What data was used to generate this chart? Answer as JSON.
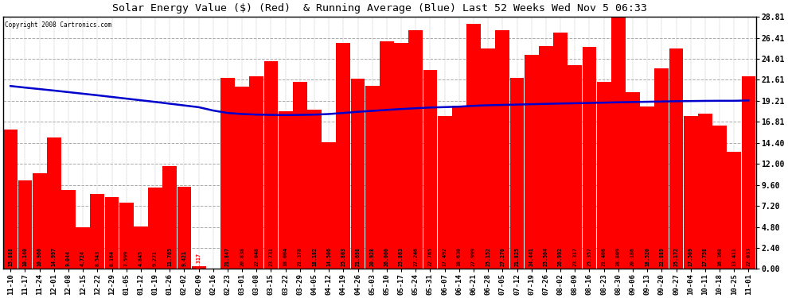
{
  "title": "Solar Energy Value ($) (Red)  & Running Average (Blue) Last 52 Weeks Wed Nov 5 06:33",
  "copyright": "Copyright 2008 Cartronics.com",
  "bar_color": "#FF0000",
  "line_color": "#0000CC",
  "bg_color": "#FFFFFF",
  "plot_bg_color": "#FFFFFF",
  "grid_color": "#AAAAAA",
  "yticks": [
    0.0,
    2.4,
    4.8,
    7.2,
    9.6,
    12.0,
    14.4,
    16.81,
    19.21,
    21.61,
    24.01,
    26.41,
    28.81
  ],
  "categories": [
    "11-10",
    "11-17",
    "11-24",
    "12-01",
    "12-08",
    "12-15",
    "12-22",
    "12-29",
    "01-05",
    "01-12",
    "01-19",
    "01-26",
    "02-02",
    "02-09",
    "02-16",
    "02-23",
    "03-01",
    "03-08",
    "03-15",
    "03-22",
    "03-29",
    "04-05",
    "04-12",
    "04-19",
    "04-26",
    "05-03",
    "05-10",
    "05-17",
    "05-24",
    "05-31",
    "06-07",
    "06-14",
    "06-21",
    "06-28",
    "07-05",
    "07-12",
    "07-19",
    "07-26",
    "08-02",
    "08-09",
    "08-16",
    "08-23",
    "08-30",
    "09-06",
    "09-13",
    "09-20",
    "09-27",
    "10-04",
    "10-11",
    "10-18",
    "10-25",
    "11-01"
  ],
  "values": [
    15.888,
    10.14,
    10.96,
    14.997,
    9.044,
    4.724,
    8.543,
    8.164,
    7.599,
    4.845,
    9.271,
    11.765,
    9.421,
    0.317,
    0.0,
    21.847,
    20.838,
    22.048,
    23.731,
    18.004,
    21.378,
    18.182,
    14.506,
    25.803,
    21.698,
    20.928,
    26.0,
    25.863,
    27.246,
    22.765,
    17.492,
    18.63,
    27.999,
    25.152,
    27.27,
    21.825,
    24.441,
    25.504,
    26.992,
    23.317,
    25.357,
    21.406,
    28.809,
    20.186,
    18.52,
    22.889,
    25.172,
    17.509,
    17.758,
    16.368,
    13.411,
    22.033
  ],
  "avg_values": [
    20.9,
    20.72,
    20.55,
    20.38,
    20.2,
    20.02,
    19.84,
    19.65,
    19.46,
    19.27,
    19.08,
    18.88,
    18.68,
    18.48,
    18.1,
    17.82,
    17.7,
    17.63,
    17.6,
    17.58,
    17.6,
    17.63,
    17.7,
    17.82,
    17.95,
    18.06,
    18.17,
    18.27,
    18.36,
    18.44,
    18.49,
    18.54,
    18.64,
    18.7,
    18.74,
    18.78,
    18.82,
    18.86,
    18.9,
    18.93,
    18.96,
    19.0,
    19.04,
    19.07,
    19.1,
    19.13,
    19.16,
    19.18,
    19.2,
    19.21,
    19.21,
    19.25
  ],
  "ymax": 28.81,
  "ymin": 0.0,
  "label_fontsize": 4.8,
  "tick_fontsize": 6.5,
  "title_fontsize": 9.5
}
